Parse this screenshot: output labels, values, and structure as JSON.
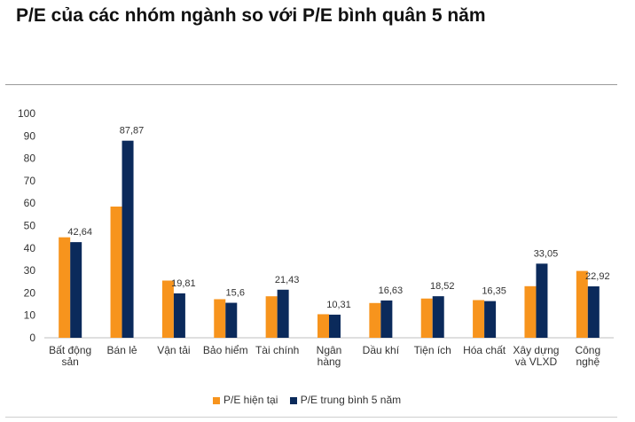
{
  "title": "P/E của các nhóm ngành so với P/E bình quân 5 năm",
  "colors": {
    "current": "#F7941D",
    "avg5y": "#0B2A5B",
    "axis": "#bfbfbf",
    "text": "#333333"
  },
  "chart_data": {
    "type": "bar",
    "categories": [
      "Bất động sản",
      "Bán lẻ",
      "Vận tải",
      "Bảo hiểm",
      "Tài chính",
      "Ngân hàng",
      "Dầu khí",
      "Tiện ích",
      "Hóa chất",
      "Xây dựng và VLXD",
      "Công nghệ"
    ],
    "category_lines": [
      [
        "Bất động",
        "sản"
      ],
      [
        "Bán lẻ"
      ],
      [
        "Vận tải"
      ],
      [
        "Bảo hiểm"
      ],
      [
        "Tài chính"
      ],
      [
        "Ngân",
        "hàng"
      ],
      [
        "Dầu khí"
      ],
      [
        "Tiện ích"
      ],
      [
        "Hóa chất"
      ],
      [
        "Xây dựng",
        "và VLXD"
      ],
      [
        "Công",
        "nghệ"
      ]
    ],
    "series": [
      {
        "name": "P/E hiện tại",
        "values": [
          44.8,
          58.5,
          25.5,
          17.2,
          18.5,
          10.5,
          15.5,
          17.5,
          16.8,
          23.0,
          29.8
        ]
      },
      {
        "name": "P/E trung bình 5 năm",
        "values": [
          42.64,
          87.87,
          19.81,
          15.6,
          21.43,
          10.31,
          16.63,
          18.52,
          16.35,
          33.05,
          22.92
        ],
        "labels": [
          "42,64",
          "87,87",
          "19,81",
          "15,6",
          "21,43",
          "10,31",
          "16,63",
          "18,52",
          "16,35",
          "33,05",
          "22,92"
        ]
      }
    ],
    "ylim": [
      0,
      100
    ],
    "yticks": [
      0,
      10,
      20,
      30,
      40,
      50,
      60,
      70,
      80,
      90,
      100
    ],
    "grid": false,
    "legend_position": "bottom"
  }
}
